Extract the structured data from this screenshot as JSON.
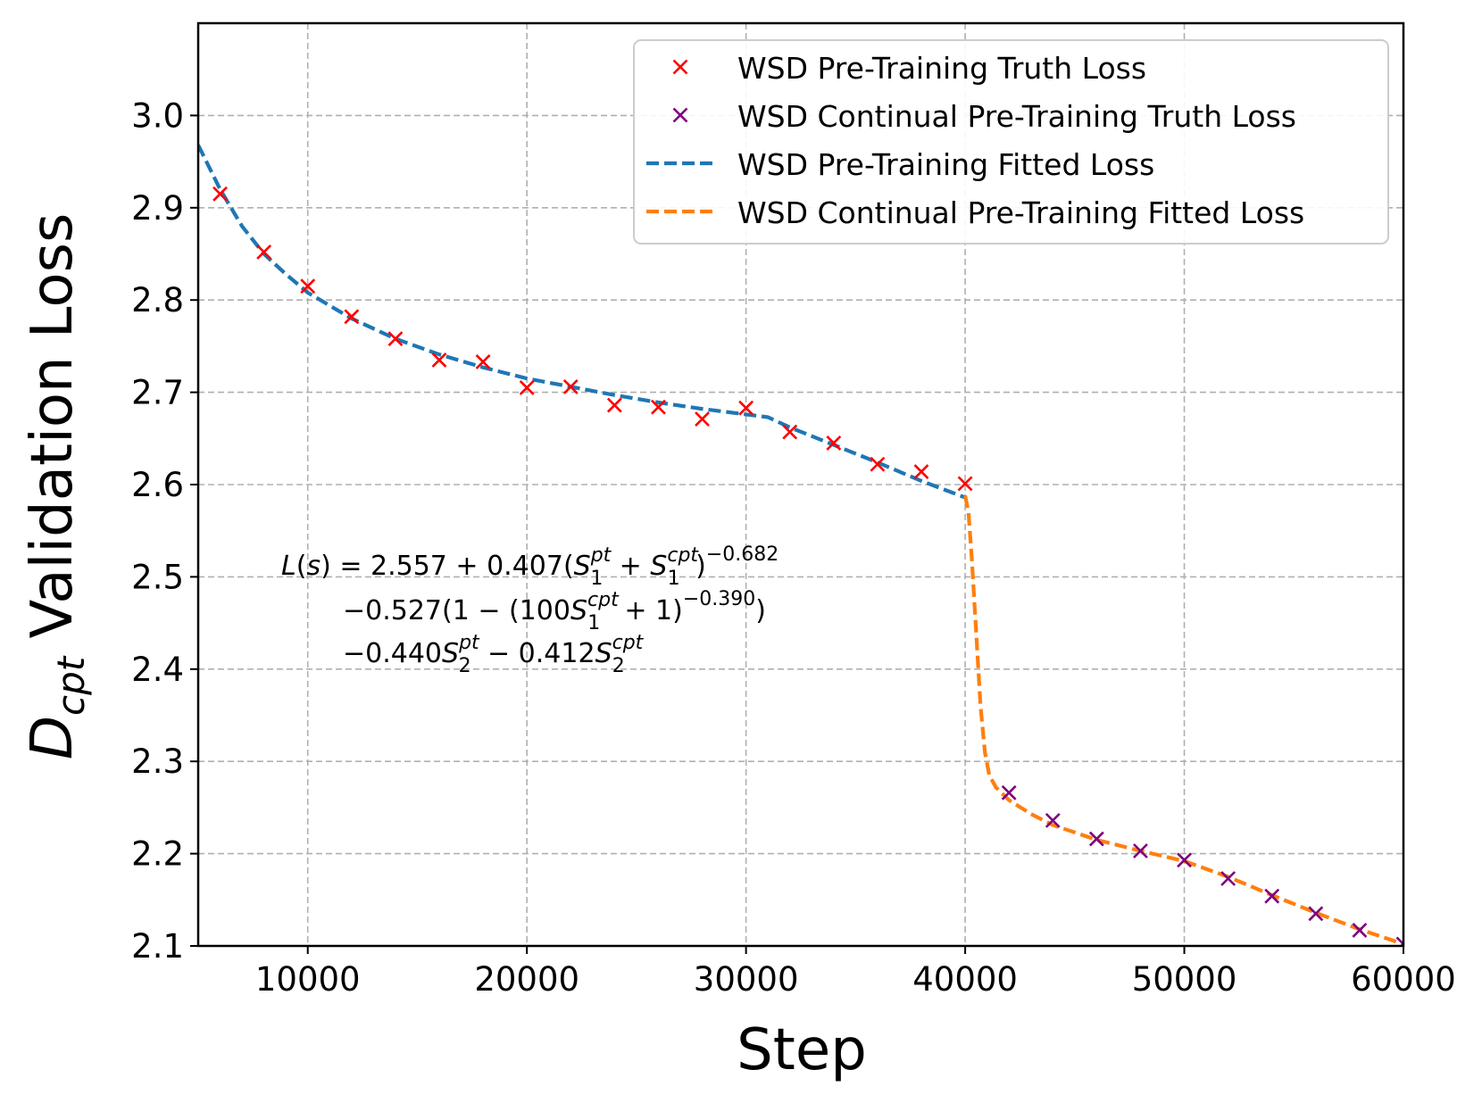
{
  "chart_data": {
    "type": "line",
    "xlabel": "Step",
    "ylabel_main": "D",
    "ylabel_sub": "cpt",
    "ylabel_rest": " Validation Loss",
    "xlim": [
      5000,
      60000
    ],
    "ylim": [
      2.1,
      3.1
    ],
    "grid": true,
    "legend_position": "top-right",
    "xticks": [
      10000,
      20000,
      30000,
      40000,
      50000,
      60000
    ],
    "xtick_labels": [
      "10000",
      "20000",
      "30000",
      "40000",
      "50000",
      "60000"
    ],
    "yticks": [
      2.1,
      2.2,
      2.3,
      2.4,
      2.5,
      2.6,
      2.7,
      2.8,
      2.9,
      3.0
    ],
    "ytick_labels": [
      "2.1",
      "2.2",
      "2.3",
      "2.4",
      "2.5",
      "2.6",
      "2.7",
      "2.8",
      "2.9",
      "3.0"
    ],
    "series": [
      {
        "name": "WSD Pre-Training Truth Loss",
        "kind": "marker",
        "color": "#ff0000",
        "x": [
          6000,
          8000,
          10000,
          12000,
          14000,
          16000,
          18000,
          20000,
          22000,
          24000,
          26000,
          28000,
          30000,
          32000,
          34000,
          36000,
          38000,
          40000
        ],
        "y": [
          2.915,
          2.852,
          2.815,
          2.782,
          2.758,
          2.735,
          2.733,
          2.705,
          2.706,
          2.686,
          2.684,
          2.671,
          2.683,
          2.657,
          2.645,
          2.622,
          2.614,
          2.601
        ]
      },
      {
        "name": "WSD Continual Pre-Training Truth Loss",
        "kind": "marker",
        "color": "#800080",
        "x": [
          42000,
          44000,
          46000,
          48000,
          50000,
          52000,
          54000,
          56000,
          58000,
          60000
        ],
        "y": [
          2.266,
          2.236,
          2.216,
          2.203,
          2.193,
          2.173,
          2.154,
          2.135,
          2.117,
          2.102
        ]
      },
      {
        "name": "WSD Pre-Training Fitted Loss",
        "kind": "dashed-line",
        "color": "#1f77b4",
        "x": [
          5000,
          6000,
          7000,
          8000,
          9000,
          10000,
          12000,
          14000,
          16000,
          18000,
          20000,
          22000,
          24000,
          26000,
          28000,
          30000,
          31000,
          32000,
          34000,
          36000,
          38000,
          40000
        ],
        "y": [
          2.968,
          2.92,
          2.88,
          2.85,
          2.828,
          2.808,
          2.78,
          2.758,
          2.741,
          2.727,
          2.715,
          2.706,
          2.697,
          2.689,
          2.682,
          2.676,
          2.673,
          2.662,
          2.643,
          2.624,
          2.604,
          2.586
        ]
      },
      {
        "name": "WSD Continual Pre-Training Fitted Loss",
        "kind": "dashed-line",
        "color": "#ff7f0e",
        "x": [
          40000,
          40150,
          40300,
          40500,
          40700,
          40900,
          41100,
          41400,
          42000,
          43000,
          44000,
          46000,
          48000,
          50000,
          52000,
          54000,
          56000,
          58000,
          60000
        ],
        "y": [
          2.588,
          2.57,
          2.52,
          2.44,
          2.36,
          2.31,
          2.285,
          2.272,
          2.258,
          2.243,
          2.231,
          2.215,
          2.203,
          2.192,
          2.175,
          2.155,
          2.136,
          2.118,
          2.102
        ]
      }
    ],
    "annotation_lines": [
      [
        {
          "t": "L",
          "i": true
        },
        {
          "t": "("
        },
        {
          "t": "s",
          "i": true
        },
        {
          "t": ") = 2.557 + 0.407("
        },
        {
          "t": "S",
          "i": true,
          "sub": "1",
          "sup": "pt"
        },
        {
          "t": " + "
        },
        {
          "t": "S",
          "i": true,
          "sub": "1",
          "sup": "cpt"
        },
        {
          "t": ")"
        },
        {
          "sup_only": "−0.682"
        }
      ],
      [
        {
          "t": "−0.527(1 − (100"
        },
        {
          "t": "S",
          "i": true,
          "sub": "1",
          "sup": "cpt"
        },
        {
          "t": " + 1)"
        },
        {
          "sup_only": "−0.390"
        },
        {
          "t": ")"
        }
      ],
      [
        {
          "t": "−0.440"
        },
        {
          "t": "S",
          "i": true,
          "sub": "2",
          "sup": "pt"
        },
        {
          "t": " − 0.412"
        },
        {
          "t": "S",
          "i": true,
          "sub": "2",
          "sup": "cpt"
        }
      ]
    ]
  }
}
